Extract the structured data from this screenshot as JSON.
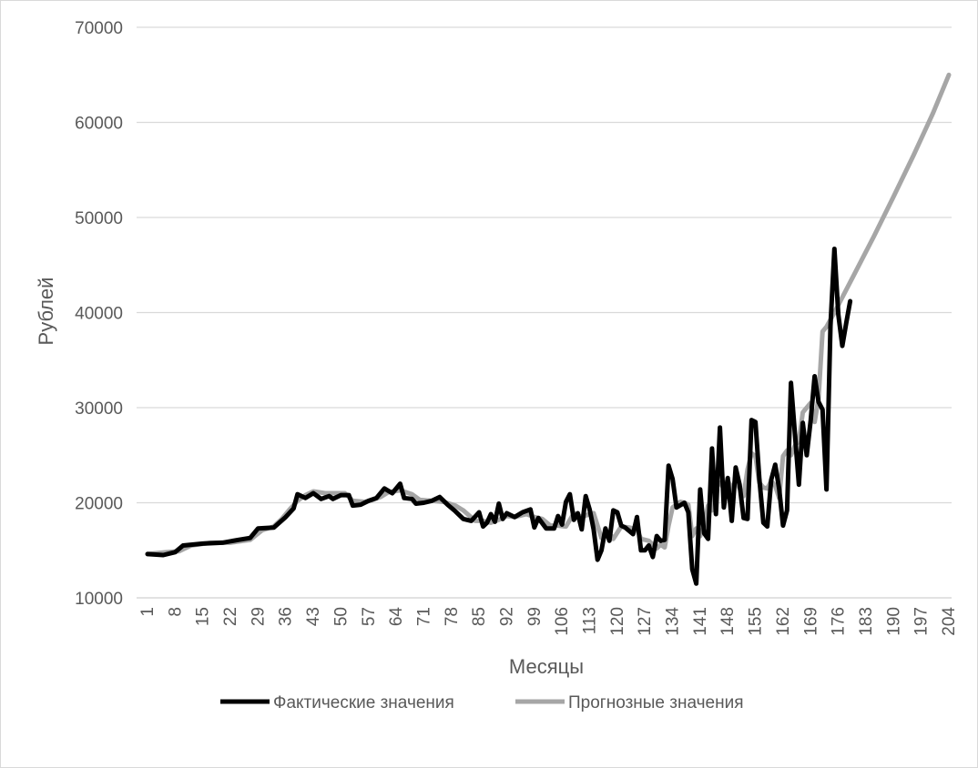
{
  "chart_data": {
    "type": "line",
    "xlabel": "Месяцы",
    "ylabel": "Рублей",
    "ylim": [
      10000,
      70000
    ],
    "yticks": [
      10000,
      20000,
      30000,
      40000,
      50000,
      60000,
      70000
    ],
    "xlim": [
      1,
      204
    ],
    "xticks": [
      1,
      8,
      15,
      22,
      29,
      36,
      43,
      50,
      57,
      64,
      71,
      78,
      85,
      92,
      99,
      106,
      113,
      120,
      127,
      134,
      141,
      148,
      155,
      162,
      169,
      176,
      183,
      190,
      197,
      204
    ],
    "grid": true,
    "legend_position": "bottom",
    "series": [
      {
        "name": "Фактические значения",
        "color": "#000000",
        "points": [
          [
            1,
            14600
          ],
          [
            5,
            14500
          ],
          [
            8,
            14800
          ],
          [
            10,
            15500
          ],
          [
            15,
            15700
          ],
          [
            20,
            15800
          ],
          [
            24,
            16100
          ],
          [
            27,
            16300
          ],
          [
            29,
            17300
          ],
          [
            33,
            17400
          ],
          [
            36,
            18500
          ],
          [
            38,
            19400
          ],
          [
            39,
            20900
          ],
          [
            41,
            20500
          ],
          [
            43,
            21000
          ],
          [
            45,
            20400
          ],
          [
            47,
            20700
          ],
          [
            48,
            20400
          ],
          [
            50,
            20800
          ],
          [
            52,
            20800
          ],
          [
            53,
            19700
          ],
          [
            55,
            19800
          ],
          [
            57,
            20200
          ],
          [
            59,
            20500
          ],
          [
            61,
            21500
          ],
          [
            63,
            21000
          ],
          [
            65,
            22000
          ],
          [
            66,
            20500
          ],
          [
            68,
            20400
          ],
          [
            69,
            19900
          ],
          [
            71,
            20000
          ],
          [
            73,
            20200
          ],
          [
            75,
            20600
          ],
          [
            77,
            19800
          ],
          [
            79,
            19100
          ],
          [
            81,
            18300
          ],
          [
            83,
            18100
          ],
          [
            85,
            19000
          ],
          [
            86,
            17500
          ],
          [
            87,
            17900
          ],
          [
            88,
            18800
          ],
          [
            89,
            18000
          ],
          [
            90,
            19900
          ],
          [
            91,
            18300
          ],
          [
            92,
            18900
          ],
          [
            94,
            18500
          ],
          [
            96,
            19000
          ],
          [
            98,
            19300
          ],
          [
            99,
            17400
          ],
          [
            100,
            18400
          ],
          [
            102,
            17300
          ],
          [
            104,
            17300
          ],
          [
            105,
            18600
          ],
          [
            106,
            17700
          ],
          [
            107,
            20100
          ],
          [
            108,
            20900
          ],
          [
            109,
            18200
          ],
          [
            110,
            18900
          ],
          [
            111,
            17200
          ],
          [
            112,
            20700
          ],
          [
            113,
            19300
          ],
          [
            114,
            17200
          ],
          [
            115,
            14000
          ],
          [
            116,
            15000
          ],
          [
            117,
            17300
          ],
          [
            118,
            16000
          ],
          [
            119,
            19200
          ],
          [
            120,
            19000
          ],
          [
            121,
            17600
          ],
          [
            122,
            17400
          ],
          [
            124,
            16700
          ],
          [
            125,
            18500
          ],
          [
            126,
            15000
          ],
          [
            127,
            15000
          ],
          [
            128,
            15500
          ],
          [
            129,
            14300
          ],
          [
            130,
            16500
          ],
          [
            131,
            16000
          ],
          [
            132,
            16100
          ],
          [
            133,
            23900
          ],
          [
            134,
            22500
          ],
          [
            135,
            19500
          ],
          [
            137,
            20000
          ],
          [
            138,
            19000
          ],
          [
            139,
            13000
          ],
          [
            140,
            11500
          ],
          [
            141,
            21400
          ],
          [
            142,
            16800
          ],
          [
            143,
            16200
          ],
          [
            144,
            25700
          ],
          [
            145,
            18800
          ],
          [
            146,
            27900
          ],
          [
            147,
            19500
          ],
          [
            148,
            22600
          ],
          [
            149,
            18100
          ],
          [
            150,
            23700
          ],
          [
            151,
            21900
          ],
          [
            152,
            18400
          ],
          [
            153,
            18300
          ],
          [
            154,
            28700
          ],
          [
            155,
            28500
          ],
          [
            156,
            22500
          ],
          [
            157,
            17900
          ],
          [
            158,
            17500
          ],
          [
            159,
            22400
          ],
          [
            160,
            24000
          ],
          [
            161,
            21500
          ],
          [
            162,
            17600
          ],
          [
            163,
            19200
          ],
          [
            164,
            32600
          ],
          [
            165,
            27300
          ],
          [
            166,
            21900
          ],
          [
            167,
            28400
          ],
          [
            168,
            25000
          ],
          [
            169,
            28700
          ],
          [
            170,
            33300
          ],
          [
            171,
            30600
          ],
          [
            172,
            29800
          ],
          [
            173,
            21400
          ],
          [
            174,
            38600
          ],
          [
            175,
            46700
          ],
          [
            176,
            39800
          ],
          [
            177,
            36500
          ],
          [
            178,
            38900
          ],
          [
            179,
            41200
          ]
        ]
      },
      {
        "name": "Прогнозные значения",
        "color": "#a6a6a6",
        "points": [
          [
            1,
            14600
          ],
          [
            6,
            14800
          ],
          [
            9,
            14900
          ],
          [
            12,
            15500
          ],
          [
            17,
            15800
          ],
          [
            22,
            15800
          ],
          [
            27,
            16100
          ],
          [
            30,
            17100
          ],
          [
            33,
            17500
          ],
          [
            35,
            18300
          ],
          [
            37,
            19300
          ],
          [
            39,
            20200
          ],
          [
            41,
            20800
          ],
          [
            43,
            21200
          ],
          [
            46,
            21000
          ],
          [
            48,
            21000
          ],
          [
            51,
            21000
          ],
          [
            53,
            20200
          ],
          [
            56,
            20100
          ],
          [
            58,
            20300
          ],
          [
            60,
            20600
          ],
          [
            62,
            21100
          ],
          [
            65,
            21300
          ],
          [
            68,
            20900
          ],
          [
            70,
            20300
          ],
          [
            73,
            20200
          ],
          [
            76,
            20100
          ],
          [
            79,
            19700
          ],
          [
            81,
            19200
          ],
          [
            84,
            18100
          ],
          [
            86,
            18100
          ],
          [
            88,
            17900
          ],
          [
            90,
            18200
          ],
          [
            92,
            18600
          ],
          [
            94,
            18500
          ],
          [
            97,
            18800
          ],
          [
            99,
            18500
          ],
          [
            101,
            18300
          ],
          [
            103,
            17600
          ],
          [
            105,
            17600
          ],
          [
            107,
            17500
          ],
          [
            109,
            18900
          ],
          [
            111,
            18500
          ],
          [
            113,
            18800
          ],
          [
            114,
            18900
          ],
          [
            116,
            16300
          ],
          [
            118,
            16800
          ],
          [
            119,
            16200
          ],
          [
            121,
            17500
          ],
          [
            123,
            17400
          ],
          [
            125,
            17200
          ],
          [
            126,
            16200
          ],
          [
            128,
            16000
          ],
          [
            130,
            15200
          ],
          [
            131,
            15600
          ],
          [
            132,
            15300
          ],
          [
            133,
            17600
          ],
          [
            134,
            19500
          ],
          [
            136,
            20100
          ],
          [
            137,
            20000
          ],
          [
            138,
            19800
          ],
          [
            139,
            16500
          ],
          [
            140,
            17300
          ],
          [
            141,
            16500
          ],
          [
            142,
            17500
          ],
          [
            143,
            19700
          ],
          [
            144,
            19200
          ],
          [
            145,
            22200
          ],
          [
            146,
            22100
          ],
          [
            147,
            21500
          ],
          [
            148,
            22400
          ],
          [
            149,
            21300
          ],
          [
            150,
            22500
          ],
          [
            151,
            21500
          ],
          [
            152,
            20700
          ],
          [
            153,
            23500
          ],
          [
            154,
            25200
          ],
          [
            155,
            24900
          ],
          [
            156,
            22100
          ],
          [
            157,
            21600
          ],
          [
            158,
            21500
          ],
          [
            159,
            22300
          ],
          [
            160,
            21800
          ],
          [
            161,
            20500
          ],
          [
            162,
            24900
          ],
          [
            163,
            25500
          ],
          [
            164,
            25000
          ],
          [
            165,
            26000
          ],
          [
            166,
            26500
          ],
          [
            167,
            29500
          ],
          [
            168,
            30000
          ],
          [
            169,
            30500
          ],
          [
            170,
            28500
          ],
          [
            171,
            31000
          ],
          [
            172,
            38000
          ],
          [
            173,
            38500
          ],
          [
            175,
            40000
          ],
          [
            180,
            44000
          ],
          [
            185,
            48000
          ],
          [
            190,
            52200
          ],
          [
            195,
            56500
          ],
          [
            200,
            61000
          ],
          [
            204,
            65000
          ]
        ]
      }
    ]
  }
}
